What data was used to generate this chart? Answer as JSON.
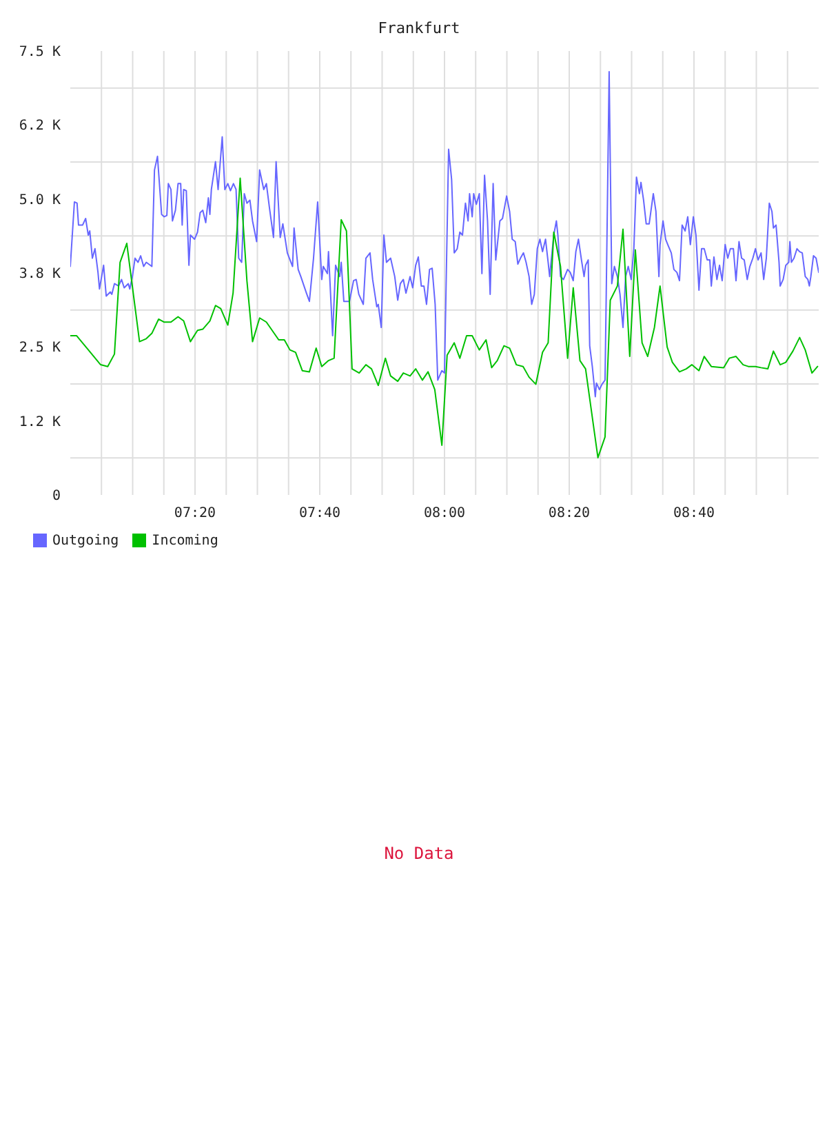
{
  "chart_data": {
    "type": "line",
    "title": "Frankfurt",
    "annotations": [
      "No Data"
    ],
    "xlim": [
      7,
      9
    ],
    "xticks": [
      {
        "value": 7.0833,
        "label": null
      },
      {
        "value": 7.1667,
        "label": null
      },
      {
        "value": 7.25,
        "label": null
      },
      {
        "value": 7.3333,
        "label": "07:20"
      },
      {
        "value": 7.4167,
        "label": null
      },
      {
        "value": 7.5,
        "label": null
      },
      {
        "value": 7.5833,
        "label": null
      },
      {
        "value": 7.6667,
        "label": "07:40"
      },
      {
        "value": 7.75,
        "label": null
      },
      {
        "value": 7.8333,
        "label": null
      },
      {
        "value": 7.9167,
        "label": null
      },
      {
        "value": 8,
        "label": "08:00"
      },
      {
        "value": 8.0833,
        "label": null
      },
      {
        "value": 8.1667,
        "label": null
      },
      {
        "value": 8.25,
        "label": null
      },
      {
        "value": 8.3333,
        "label": "08:20"
      },
      {
        "value": 8.4167,
        "label": null
      },
      {
        "value": 8.5,
        "label": null
      },
      {
        "value": 8.5833,
        "label": null
      },
      {
        "value": 8.6667,
        "label": "08:40"
      },
      {
        "value": 8.75,
        "label": null
      },
      {
        "value": 8.8333,
        "label": null
      },
      {
        "value": 8.9167,
        "label": null
      }
    ],
    "ylim": [
      0,
      7500
    ],
    "yticks": [
      0,
      {
        "value": 625,
        "label": null
      },
      {
        "value": 1250,
        "label": "1.2 K"
      },
      {
        "value": 1875,
        "label": null
      },
      {
        "value": 2500,
        "label": "2.5 K"
      },
      {
        "value": 3125,
        "label": null
      },
      {
        "value": 3750,
        "label": "3.8 K"
      },
      {
        "value": 4375,
        "label": null
      },
      {
        "value": 5000,
        "label": "5.0 K"
      },
      {
        "value": 5625,
        "label": null
      },
      {
        "value": 6250,
        "label": "6.2 K"
      },
      {
        "value": 6875,
        "label": null
      },
      {
        "value": 7500,
        "label": "7.5 K"
      }
    ],
    "grid": true,
    "legend": "bottom left",
    "series": [
      {
        "name": "Outgoing",
        "color": "#6666ff",
        "x": [
          7.0,
          7.011,
          7.018,
          7.022,
          7.033,
          7.041,
          7.048,
          7.052,
          7.059,
          7.066,
          7.074,
          7.078,
          7.089,
          7.096,
          7.107,
          7.111,
          7.118,
          7.129,
          7.137,
          7.144,
          7.155,
          7.159,
          7.166,
          7.173,
          7.181,
          7.188,
          7.196,
          7.203,
          7.218,
          7.225,
          7.233,
          7.244,
          7.251,
          7.258,
          7.262,
          7.269,
          7.273,
          7.281,
          7.288,
          7.295,
          7.299,
          7.303,
          7.31,
          7.317,
          7.321,
          7.332,
          7.34,
          7.347,
          7.354,
          7.362,
          7.369,
          7.373,
          7.377,
          7.388,
          7.395,
          7.406,
          7.413,
          7.421,
          7.428,
          7.436,
          7.443,
          7.45,
          7.458,
          7.465,
          7.472,
          7.48,
          7.487,
          7.498,
          7.506,
          7.517,
          7.524,
          7.532,
          7.543,
          7.55,
          7.561,
          7.568,
          7.58,
          7.594,
          7.598,
          7.609,
          7.616,
          7.631,
          7.639,
          7.65,
          7.661,
          7.672,
          7.676,
          7.687,
          7.69,
          7.701,
          7.709,
          7.72,
          7.724,
          7.731,
          7.746,
          7.757,
          7.764,
          7.771,
          7.783,
          7.79,
          7.801,
          7.808,
          7.819,
          7.823,
          7.831,
          7.838,
          7.845,
          7.856,
          7.867,
          7.875,
          7.882,
          7.89,
          7.897,
          7.908,
          7.915,
          7.923,
          7.93,
          7.938,
          7.945,
          7.952,
          7.96,
          7.967,
          7.975,
          7.982,
          7.993,
          8.0,
          8.011,
          8.019,
          8.026,
          8.034,
          8.041,
          8.048,
          8.056,
          8.063,
          8.067,
          8.074,
          8.078,
          8.085,
          8.093,
          8.1,
          8.107,
          8.115,
          8.122,
          8.13,
          8.137,
          8.148,
          8.155,
          8.166,
          8.174,
          8.181,
          8.189,
          8.196,
          8.203,
          8.211,
          8.218,
          8.226,
          8.233,
          8.24,
          8.248,
          8.255,
          8.262,
          8.27,
          8.277,
          8.281,
          8.292,
          8.299,
          8.303,
          8.31,
          8.318,
          8.329,
          8.336,
          8.344,
          8.351,
          8.358,
          8.366,
          8.373,
          8.377,
          8.384,
          8.388,
          8.395,
          8.403,
          8.406,
          8.414,
          8.421,
          8.429,
          8.432,
          8.44,
          8.447,
          8.454,
          8.462,
          8.469,
          8.477,
          8.484,
          8.491,
          8.499,
          8.506,
          8.513,
          8.521,
          8.525,
          8.532,
          8.539,
          8.547,
          8.558,
          8.565,
          8.573,
          8.576,
          8.584,
          8.591,
          8.598,
          8.606,
          8.613,
          8.621,
          8.628,
          8.635,
          8.643,
          8.65,
          8.657,
          8.665,
          8.672,
          8.68,
          8.687,
          8.694,
          8.702,
          8.709,
          8.713,
          8.72,
          8.728,
          8.735,
          8.742,
          8.75,
          8.757,
          8.764,
          8.772,
          8.779,
          8.787,
          8.794,
          8.801,
          8.809,
          8.816,
          8.824,
          8.831,
          8.838,
          8.846,
          8.853,
          8.86,
          8.868,
          8.875,
          8.879,
          8.886,
          8.894,
          8.897,
          8.905,
          8.912,
          8.92,
          8.923,
          8.927,
          8.934,
          8.942,
          8.949,
          8.956,
          8.964,
          8.971,
          8.975,
          8.979,
          8.986,
          8.993,
          9.0
        ],
        "values": [
          3860,
          4950,
          4930,
          4560,
          4560,
          4670,
          4390,
          4460,
          4000,
          4160,
          3760,
          3480,
          3880,
          3360,
          3430,
          3390,
          3570,
          3530,
          3640,
          3500,
          3570,
          3480,
          3690,
          4000,
          3930,
          4040,
          3860,
          3930,
          3860,
          5490,
          5720,
          4740,
          4700,
          4720,
          5260,
          5160,
          4630,
          4810,
          5260,
          5260,
          4560,
          5160,
          5140,
          3880,
          4390,
          4320,
          4440,
          4770,
          4810,
          4600,
          5020,
          4740,
          5160,
          5630,
          5160,
          6050,
          5160,
          5260,
          5140,
          5260,
          5160,
          4000,
          3930,
          5090,
          4930,
          4980,
          4630,
          4280,
          5490,
          5160,
          5260,
          4860,
          4350,
          5630,
          4350,
          4580,
          4090,
          3860,
          4510,
          3810,
          3690,
          3410,
          3270,
          4000,
          4950,
          3640,
          3860,
          3740,
          4110,
          2690,
          3880,
          3690,
          3930,
          3270,
          3270,
          3620,
          3640,
          3390,
          3220,
          4000,
          4090,
          3640,
          3180,
          3220,
          2830,
          4390,
          3930,
          4000,
          3690,
          3290,
          3570,
          3640,
          3410,
          3690,
          3500,
          3880,
          4020,
          3530,
          3530,
          3220,
          3810,
          3830,
          3220,
          1940,
          2100,
          2060,
          5840,
          5330,
          4090,
          4160,
          4440,
          4390,
          4930,
          4630,
          5090,
          4700,
          5090,
          4910,
          5090,
          3740,
          5400,
          4630,
          3390,
          5260,
          3970,
          4630,
          4670,
          5050,
          4790,
          4320,
          4280,
          3900,
          4000,
          4090,
          3930,
          3690,
          3220,
          3390,
          4160,
          4320,
          4110,
          4320,
          3930,
          3690,
          4390,
          4630,
          4390,
          3690,
          3640,
          3810,
          3760,
          3620,
          4110,
          4320,
          3970,
          3690,
          3880,
          3970,
          2520,
          2170,
          1660,
          1890,
          1780,
          1870,
          1940,
          3290,
          7150,
          3570,
          3860,
          3690,
          3390,
          2830,
          3690,
          3860,
          3640,
          4160,
          5370,
          5090,
          5280,
          4980,
          4580,
          4580,
          5090,
          4790,
          3690,
          4230,
          4630,
          4320,
          4210,
          4090,
          3810,
          3760,
          3620,
          4560,
          4460,
          4700,
          4230,
          4700,
          4390,
          3460,
          4160,
          4160,
          3970,
          3970,
          3530,
          4020,
          3640,
          3880,
          3620,
          4230,
          4000,
          4160,
          4160,
          3620,
          4280,
          4000,
          3970,
          3640,
          3860,
          4000,
          4160,
          3970,
          4090,
          3640,
          4000,
          4930,
          4790,
          4510,
          4560,
          3930,
          3530,
          3640,
          3880,
          3930,
          4280,
          3930,
          4000,
          4160,
          4110,
          4090,
          3690,
          3640,
          3530,
          3690,
          4040,
          4000,
          3760
        ]
      },
      {
        "name": "Incoming",
        "color": "#00c000",
        "x": [
          7.0,
          7.017,
          7.081,
          7.1,
          7.118,
          7.133,
          7.151,
          7.185,
          7.203,
          7.218,
          7.236,
          7.251,
          7.269,
          7.288,
          7.303,
          7.321,
          7.34,
          7.354,
          7.373,
          7.388,
          7.402,
          7.421,
          7.435,
          7.454,
          7.472,
          7.487,
          7.506,
          7.524,
          7.557,
          7.572,
          7.587,
          7.602,
          7.62,
          7.639,
          7.657,
          7.672,
          7.69,
          7.705,
          7.724,
          7.738,
          7.753,
          7.772,
          7.79,
          7.805,
          7.823,
          7.842,
          7.856,
          7.875,
          7.89,
          7.908,
          7.923,
          7.941,
          7.956,
          7.974,
          7.993,
          8.007,
          8.026,
          8.041,
          8.059,
          8.074,
          8.093,
          8.111,
          8.126,
          8.141,
          8.159,
          8.174,
          8.192,
          8.21,
          8.226,
          8.244,
          8.262,
          8.277,
          8.292,
          8.31,
          8.329,
          8.344,
          8.362,
          8.377,
          8.41,
          8.429,
          8.443,
          8.462,
          8.477,
          8.495,
          8.51,
          8.528,
          8.543,
          8.561,
          8.576,
          8.595,
          8.609,
          8.628,
          8.646,
          8.661,
          8.68,
          8.694,
          8.713,
          8.746,
          8.761,
          8.779,
          8.798,
          8.812,
          8.831,
          8.846,
          8.864,
          8.879,
          8.897,
          8.912,
          8.931,
          8.949,
          8.964,
          8.982,
          8.997
        ],
        "values": [
          2690,
          2690,
          2200,
          2170,
          2380,
          3930,
          4250,
          2590,
          2640,
          2730,
          2970,
          2920,
          2920,
          3010,
          2940,
          2590,
          2780,
          2800,
          2940,
          3200,
          3150,
          2870,
          3410,
          5350,
          3620,
          2590,
          2990,
          2920,
          2620,
          2620,
          2450,
          2410,
          2100,
          2080,
          2480,
          2170,
          2270,
          2310,
          4650,
          4460,
          2130,
          2060,
          2200,
          2130,
          1850,
          2310,
          2010,
          1920,
          2060,
          2010,
          2130,
          1940,
          2080,
          1780,
          840,
          2360,
          2570,
          2310,
          2690,
          2690,
          2450,
          2620,
          2150,
          2270,
          2520,
          2480,
          2200,
          2170,
          1990,
          1870,
          2410,
          2570,
          4440,
          3860,
          2310,
          3500,
          2270,
          2130,
          630,
          980,
          3290,
          3530,
          4490,
          2340,
          4140,
          2570,
          2340,
          2830,
          3530,
          2500,
          2240,
          2080,
          2130,
          2200,
          2100,
          2340,
          2170,
          2150,
          2310,
          2340,
          2200,
          2170,
          2170,
          2150,
          2130,
          2430,
          2200,
          2240,
          2430,
          2660,
          2450,
          2060,
          2170
        ]
      }
    ]
  }
}
